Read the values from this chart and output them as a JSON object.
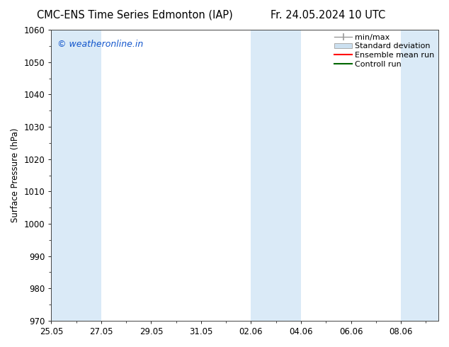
{
  "title_left": "CMC-ENS Time Series Edmonton (IAP)",
  "title_right": "Fr. 24.05.2024 10 UTC",
  "ylabel": "Surface Pressure (hPa)",
  "ylim": [
    970,
    1060
  ],
  "yticks": [
    970,
    980,
    990,
    1000,
    1010,
    1020,
    1030,
    1040,
    1050,
    1060
  ],
  "xlim": [
    0,
    15.5
  ],
  "xtick_labels": [
    "25.05",
    "27.05",
    "29.05",
    "31.05",
    "02.06",
    "04.06",
    "06.06",
    "08.06"
  ],
  "xtick_positions": [
    0,
    2,
    4,
    6,
    8,
    10,
    12,
    14
  ],
  "shaded_bands": [
    {
      "start": 0,
      "end": 2
    },
    {
      "start": 8,
      "end": 10
    },
    {
      "start": 14,
      "end": 15.5
    }
  ],
  "band_color": "#daeaf7",
  "watermark_text": "© weatheronline.in",
  "watermark_color": "#1155cc",
  "legend_items": [
    {
      "label": "min/max",
      "color": "#999999",
      "type": "errorbar"
    },
    {
      "label": "Standard deviation",
      "color": "#cce0f0",
      "type": "box"
    },
    {
      "label": "Ensemble mean run",
      "color": "#ff0000",
      "type": "line"
    },
    {
      "label": "Controll run",
      "color": "#006600",
      "type": "line"
    }
  ],
  "font_size_title": 10.5,
  "font_size_axis": 8.5,
  "font_size_legend": 8,
  "font_size_watermark": 9,
  "background_color": "#ffffff",
  "spine_color": "#444444"
}
